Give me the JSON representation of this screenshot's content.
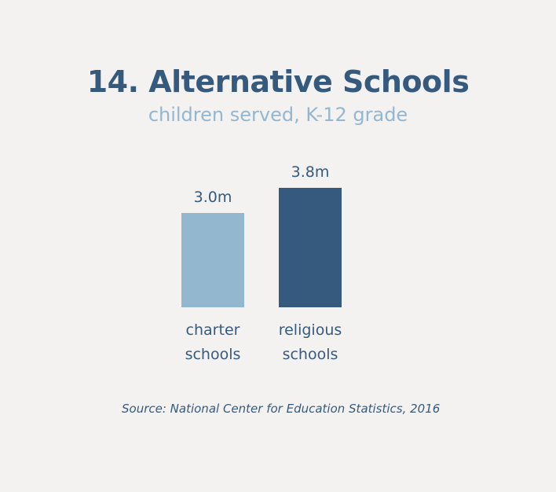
{
  "chart_data": {
    "type": "bar",
    "title": "14. Alternative Schools",
    "subtitle": "children served, K-12 grade",
    "categories": [
      [
        "charter",
        "schools"
      ],
      [
        "religious",
        "schools"
      ]
    ],
    "values": [
      3.0,
      3.8
    ],
    "value_labels": [
      "3.0m",
      "3.8m"
    ],
    "colors": [
      "#93b7cf",
      "#365a7e"
    ],
    "unit": "m",
    "ylim": [
      0,
      3.8
    ],
    "grid": false,
    "source": "Source: National Center for Education Statistics, 2016"
  }
}
